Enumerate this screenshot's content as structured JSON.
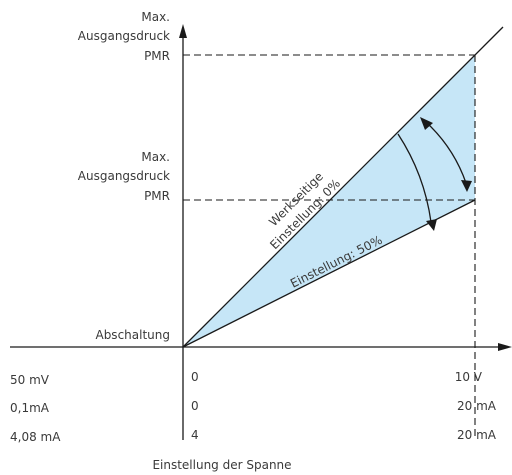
{
  "colors": {
    "range_fill": "#c6e6f7",
    "lines": "#1a1a1a",
    "text": "#3a3a3a"
  },
  "y_axis": {
    "upper_label": [
      "Max.",
      "Ausgangsdruck",
      "PMR"
    ],
    "middle_label": [
      "Max.",
      "Ausgangsdruck",
      "PMR"
    ],
    "origin_label": "Abschaltung"
  },
  "lines": {
    "factory_setting": [
      "Werkseitige",
      "Einstellung: 0%"
    ],
    "adjusted_setting": "Einstellung: 50%"
  },
  "x_axis": {
    "title": "Einstellung der Spanne",
    "rows": [
      {
        "left": "50 mV",
        "start": "0",
        "end": "10 V"
      },
      {
        "left": "0,1mA",
        "start": "0",
        "end": "20 mA"
      },
      {
        "left": "4,08 mA",
        "start": "4",
        "end": "20 mA"
      }
    ]
  },
  "icons": [
    "y-axis-arrow-icon",
    "x-axis-arrow-icon",
    "adjustment-arc-arrow-icon"
  ]
}
